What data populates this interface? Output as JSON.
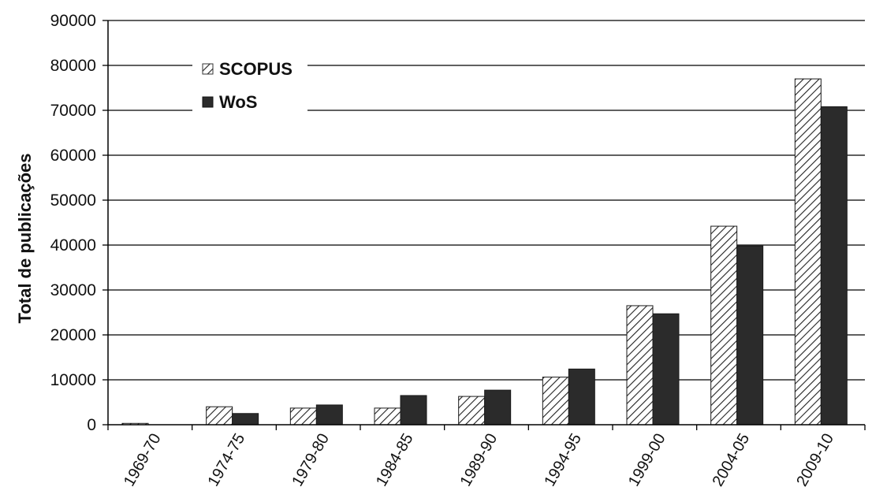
{
  "chart_data": {
    "type": "bar",
    "title": "",
    "xlabel": "",
    "ylabel": "Total de publicações",
    "ylim": [
      0,
      90000
    ],
    "yticks": [
      0,
      10000,
      20000,
      30000,
      40000,
      50000,
      60000,
      70000,
      80000,
      90000
    ],
    "categories": [
      "1969-70",
      "1974-75",
      "1979-80",
      "1984-85",
      "1989-90",
      "1994-95",
      "1999-00",
      "2004-05",
      "2009-10"
    ],
    "series": [
      {
        "name": "SCOPUS",
        "pattern": "hatched",
        "color": "#ffffff",
        "values": [
          300,
          4000,
          3700,
          3700,
          6300,
          10600,
          26500,
          44200,
          77000
        ]
      },
      {
        "name": "WoS",
        "pattern": "solid",
        "color": "#2b2b2b",
        "values": [
          0,
          2500,
          4400,
          6500,
          7700,
          12400,
          24700,
          39800,
          70800
        ]
      }
    ],
    "grid": true,
    "legend_position": "top-left"
  }
}
